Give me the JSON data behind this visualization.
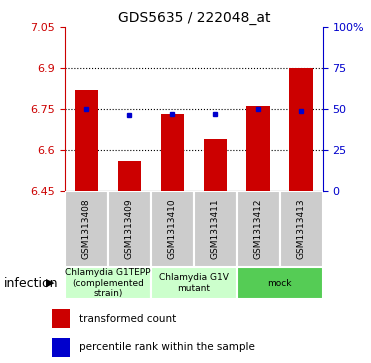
{
  "title": "GDS5635 / 222048_at",
  "samples": [
    "GSM1313408",
    "GSM1313409",
    "GSM1313410",
    "GSM1313411",
    "GSM1313412",
    "GSM1313413"
  ],
  "bar_values": [
    6.82,
    6.56,
    6.73,
    6.64,
    6.76,
    6.9
  ],
  "blue_values": [
    6.748,
    6.728,
    6.73,
    6.73,
    6.748,
    6.742
  ],
  "baseline": 6.45,
  "ylim": [
    6.45,
    7.05
  ],
  "yticks_left": [
    6.45,
    6.6,
    6.75,
    6.9,
    7.05
  ],
  "ytick_labels_left": [
    "6.45",
    "6.6",
    "6.75",
    "6.9",
    "7.05"
  ],
  "right_ytick_pcts": [
    0,
    25,
    50,
    75,
    100
  ],
  "right_ytick_labels": [
    "0",
    "25",
    "50",
    "75",
    "100%"
  ],
  "bar_color": "#cc0000",
  "blue_color": "#0000cc",
  "group_colors": [
    "#ccffcc",
    "#ccffcc",
    "#55cc55"
  ],
  "group_labels": [
    "Chlamydia G1TEPP\n(complemented\nstrain)",
    "Chlamydia G1V\nmutant",
    "mock"
  ],
  "group_ranges": [
    [
      0,
      2
    ],
    [
      2,
      4
    ],
    [
      4,
      6
    ]
  ],
  "sample_box_color": "#cccccc",
  "xlabel_factor": "infection",
  "legend_red": "transformed count",
  "legend_blue": "percentile rank within the sample",
  "left_tick_color": "#cc0000",
  "right_tick_color": "#0000cc",
  "dotted_lines": [
    6.6,
    6.75,
    6.9
  ]
}
